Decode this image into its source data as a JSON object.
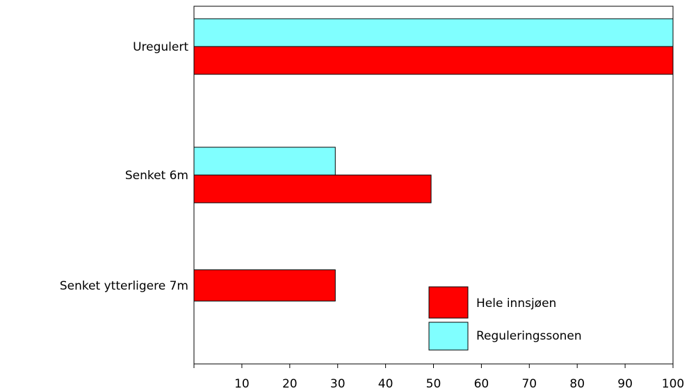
{
  "chart_data": {
    "type": "bar",
    "orientation": "horizontal",
    "title": "",
    "xlabel": "",
    "ylabel": "",
    "categories": [
      "Uregulert",
      "Senket 6m",
      "Senket ytterligere 7m"
    ],
    "series": [
      {
        "name": "Reguleringssonen",
        "color": "#80FFFF",
        "values": [
          100,
          29.5,
          0
        ]
      },
      {
        "name": "Hele innsjøen",
        "color": "#FF0000",
        "values": [
          100,
          49.5,
          29.5
        ]
      }
    ],
    "xlim": [
      0,
      100
    ],
    "xticks": [
      10,
      20,
      30,
      40,
      50,
      60,
      70,
      80,
      90,
      100
    ],
    "legend": {
      "placement": "bottom-right",
      "entries": [
        {
          "label": "Hele innsjøen",
          "color": "#FF0000"
        },
        {
          "label": "Reguleringssonen",
          "color": "#80FFFF"
        }
      ]
    },
    "grid": false
  }
}
